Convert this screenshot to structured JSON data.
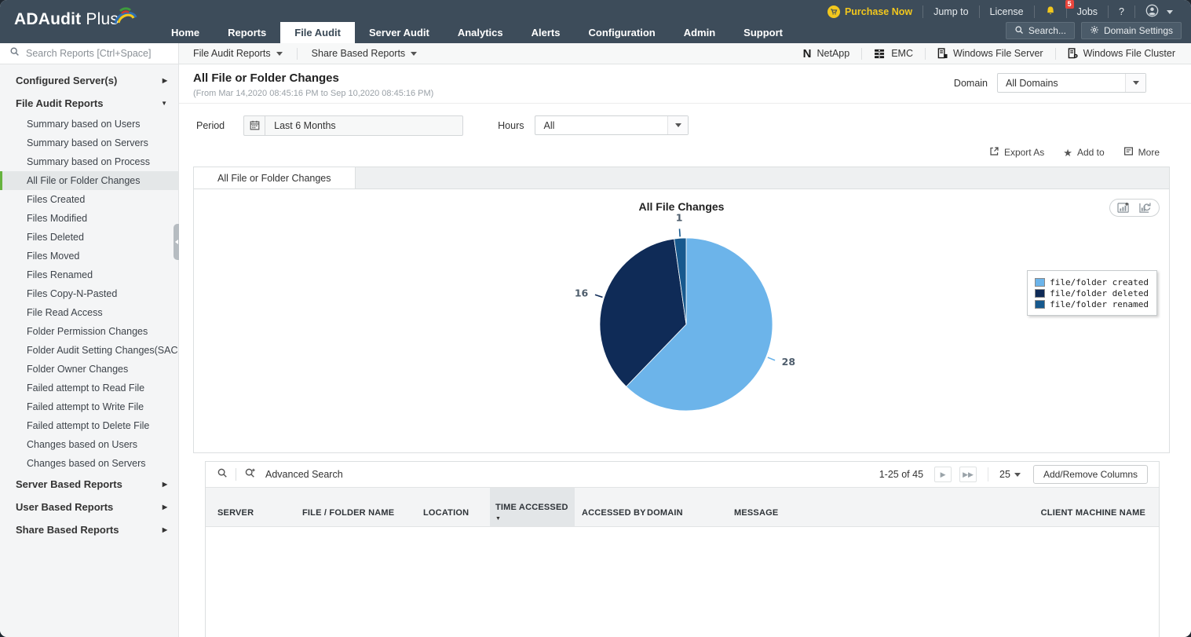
{
  "app": {
    "brand_bold": "ADAudit",
    "brand_light": " Plus"
  },
  "topbar": {
    "purchase_now": "Purchase Now",
    "jump_to": "Jump to",
    "license": "License",
    "notification_count": "5",
    "jobs": "Jobs",
    "help": "?",
    "search_button": "Search...",
    "domain_settings_button": "Domain Settings"
  },
  "nav": {
    "tabs": [
      "Home",
      "Reports",
      "File Audit",
      "Server Audit",
      "Analytics",
      "Alerts",
      "Configuration",
      "Admin",
      "Support"
    ],
    "active": "File Audit"
  },
  "toolbar": {
    "search_placeholder": "Search Reports [Ctrl+Space]",
    "menus": [
      {
        "label": "File Audit Reports"
      },
      {
        "label": "Share Based Reports"
      }
    ],
    "platforms": [
      {
        "label": "NetApp",
        "icon": "netapp-icon"
      },
      {
        "label": "EMC",
        "icon": "emc-icon"
      },
      {
        "label": "Windows File Server",
        "icon": "file-server-icon"
      },
      {
        "label": "Windows File Cluster",
        "icon": "file-cluster-icon"
      }
    ]
  },
  "sidebar": {
    "selected_item": "All File or Folder Changes",
    "sections": [
      {
        "label": "Configured Server(s)",
        "expanded": false,
        "children": []
      },
      {
        "label": "File Audit Reports",
        "expanded": true,
        "children": [
          "Summary based on Users",
          "Summary based on Servers",
          "Summary based on Process",
          "All File or Folder Changes",
          "Files Created",
          "Files Modified",
          "Files Deleted",
          "Files Moved",
          "Files Renamed",
          "Files Copy-N-Pasted",
          "File Read Access",
          "Folder Permission Changes",
          "Folder Audit Setting Changes(SACL)",
          "Folder Owner Changes",
          "Failed attempt to Read File",
          "Failed attempt to Write File",
          "Failed attempt to Delete File",
          "Changes based on Users",
          "Changes based on Servers"
        ]
      },
      {
        "label": "Server Based Reports",
        "expanded": false,
        "children": []
      },
      {
        "label": "User Based Reports",
        "expanded": false,
        "children": []
      },
      {
        "label": "Share Based Reports",
        "expanded": false,
        "children": []
      }
    ]
  },
  "report": {
    "title": "All File or Folder Changes",
    "date_range": "(From Mar 14,2020 08:45:16 PM to Sep 10,2020 08:45:16 PM)",
    "domain_label": "Domain",
    "domain_value": "All Domains",
    "period_label": "Period",
    "period_value": "Last 6 Months",
    "hours_label": "Hours",
    "hours_value": "All",
    "export_as": "Export As",
    "add_to": "Add to",
    "more": "More",
    "panel_tab": "All File or Folder Changes"
  },
  "chart_data": {
    "type": "pie",
    "title": "All File Changes",
    "total": 45,
    "legend_position": "right",
    "slices": [
      {
        "label": "file/folder created",
        "value": 28,
        "color": "#6cb4ea"
      },
      {
        "label": "file/folder deleted",
        "value": 16,
        "color": "#0f2b57"
      },
      {
        "label": "file/folder renamed",
        "value": 1,
        "color": "#17598e"
      }
    ]
  },
  "table": {
    "advanced_search": "Advanced Search",
    "pagination": {
      "range": "1-25 of 45",
      "page_size": "25",
      "add_remove_columns": "Add/Remove Columns"
    },
    "sorted_column": "TIME ACCESSED",
    "columns": [
      "SERVER",
      "FILE / FOLDER NAME",
      "LOCATION",
      "TIME ACCESSED",
      "ACCESSED BY",
      "DOMAIN",
      "MESSAGE",
      "CLIENT MACHINE NAME"
    ],
    "rows": []
  }
}
